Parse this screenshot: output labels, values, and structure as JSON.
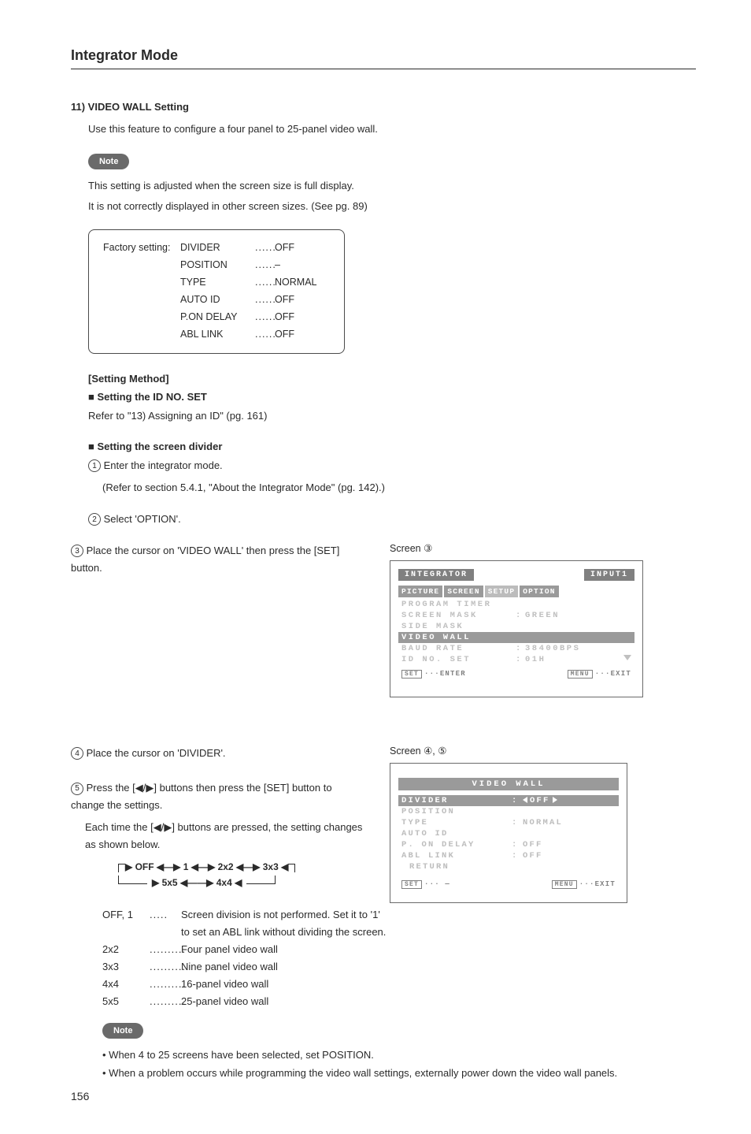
{
  "page_number": "156",
  "section_title": "Integrator Mode",
  "heading_11": "11) VIDEO WALL Setting",
  "intro_text": "Use this feature to configure a four panel to 25-panel video wall.",
  "note_label": "Note",
  "note_line1": "This setting is adjusted when the screen size is full display.",
  "note_line2": "It is not correctly displayed in other screen sizes. (See pg. 89)",
  "factory_label": "Factory setting:",
  "factory": [
    {
      "k": "DIVIDER",
      "v": "OFF"
    },
    {
      "k": "POSITION",
      "v": "–"
    },
    {
      "k": "TYPE",
      "v": "NORMAL"
    },
    {
      "k": "AUTO ID",
      "v": "OFF"
    },
    {
      "k": "P.ON DELAY",
      "v": "OFF"
    },
    {
      "k": "ABL LINK",
      "v": "OFF"
    }
  ],
  "setting_method": "[Setting Method]",
  "sq_idno": "Setting the ID NO. SET",
  "idno_ref": "Refer to \"13) Assigning an ID\" (pg. 161)",
  "sq_divider": "Setting the screen divider",
  "step1a": "Enter the integrator mode.",
  "step1b": "(Refer to section 5.4.1, \"About the Integrator Mode\" (pg. 142).)",
  "step2": "Select 'OPTION'.",
  "step3": "Place the cursor on 'VIDEO WALL' then press the [SET] button.",
  "screen3_label": "Screen ③",
  "osd1": {
    "title_left": "INTEGRATOR",
    "title_right": "INPUT1",
    "tabs": [
      "PICTURE",
      "SCREEN",
      "SETUP",
      "OPTION"
    ],
    "rows": [
      {
        "k": "PROGRAM TIMER",
        "c": "",
        "v": "",
        "hl": false
      },
      {
        "k": "SCREEN MASK",
        "c": ":",
        "v": "GREEN",
        "hl": false
      },
      {
        "k": "SIDE MASK",
        "c": "",
        "v": "",
        "hl": false
      },
      {
        "k": "VIDEO WALL",
        "c": "",
        "v": "",
        "hl": true
      },
      {
        "k": "BAUD RATE",
        "c": ":",
        "v": "38400BPS",
        "hl": false
      },
      {
        "k": "ID NO. SET",
        "c": ":",
        "v": "01H",
        "hl": false
      }
    ],
    "foot_left_chip": "SET",
    "foot_left": "···ENTER",
    "foot_right_chip": "MENU",
    "foot_right": "···EXIT"
  },
  "step4": "Place the cursor on 'DIVIDER'.",
  "screen45_label": "Screen ④, ⑤",
  "step5a": "Press the [◀/▶] buttons then press the [SET] button to change the settings.",
  "step5b": "Each time the [◀/▶] buttons are pressed, the setting changes as shown below.",
  "osd2": {
    "title": "VIDEO WALL",
    "rows": [
      {
        "k": "DIVIDER",
        "c": ":",
        "v": "OFF",
        "hl": true,
        "arrows": true
      },
      {
        "k": "POSITION",
        "c": "",
        "v": "",
        "hl": false
      },
      {
        "k": "TYPE",
        "c": ":",
        "v": "NORMAL",
        "hl": false
      },
      {
        "k": "AUTO ID",
        "c": "",
        "v": "",
        "hl": false
      },
      {
        "k": "P. ON DELAY",
        "c": ":",
        "v": "OFF",
        "hl": false
      },
      {
        "k": "ABL LINK",
        "c": ":",
        "v": "OFF",
        "hl": false
      }
    ],
    "return_label": "RETURN",
    "foot_left_chip": "SET",
    "foot_left": "··· —",
    "foot_right_chip": "MENU",
    "foot_right": "···EXIT"
  },
  "flow": {
    "line1_parts": [
      "OFF",
      "1",
      "2x2",
      "3x3"
    ],
    "line2_parts": [
      "5x5",
      "4x4"
    ]
  },
  "defs": [
    {
      "k": "OFF, 1",
      "v": "Screen division is not performed. Set it to '1' to set an ABL link without dividing the screen."
    },
    {
      "k": "2x2",
      "v": "Four panel video wall"
    },
    {
      "k": "3x3",
      "v": "Nine panel video wall"
    },
    {
      "k": "4x4",
      "v": "16-panel video wall"
    },
    {
      "k": "5x5",
      "v": "25-panel video wall"
    }
  ],
  "note2_b1": "When 4 to 25 screens have been selected, set POSITION.",
  "note2_b2": "When a problem occurs while programming the video wall settings, externally power down the video wall panels.",
  "colors": {
    "text": "#2a2a2a",
    "pill_bg": "#6a6a6a",
    "osd_gray": "#9a9a9a",
    "osd_light": "#bdbdbd"
  }
}
